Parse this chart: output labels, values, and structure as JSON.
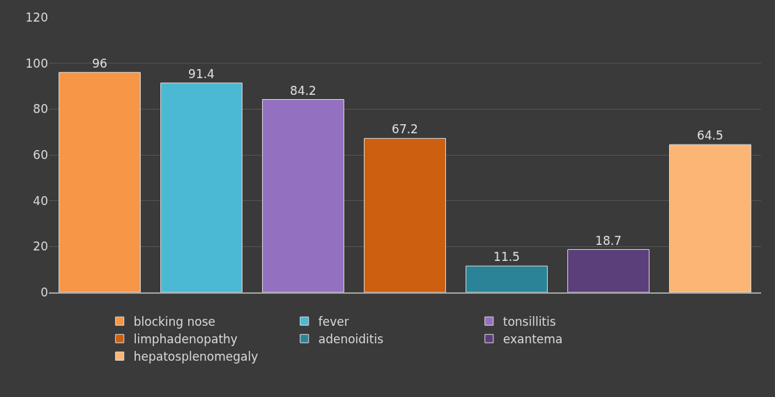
{
  "chart_data": {
    "type": "bar",
    "categories": [
      null,
      null,
      null,
      null,
      null,
      null,
      null
    ],
    "series": [
      {
        "name": "blocking nose",
        "color": "#f79646",
        "values": [
          96,
          null,
          null,
          null,
          null,
          null,
          null
        ]
      },
      {
        "name": "fever",
        "color": "#4bb8d4",
        "values": [
          null,
          91.4,
          null,
          null,
          null,
          null,
          null
        ]
      },
      {
        "name": "tonsillitis",
        "color": "#9470c0",
        "values": [
          null,
          null,
          84.2,
          null,
          null,
          null,
          null
        ]
      },
      {
        "name": "limphadenopathy",
        "color": "#cc5f10",
        "values": [
          null,
          null,
          null,
          67.2,
          null,
          null,
          null
        ]
      },
      {
        "name": "adenoiditis",
        "color": "#2b8398",
        "values": [
          null,
          null,
          null,
          null,
          11.5,
          null,
          null
        ]
      },
      {
        "name": "exantema",
        "color": "#5a3f7a",
        "values": [
          null,
          null,
          null,
          null,
          null,
          18.7,
          null
        ]
      },
      {
        "name": "hepatosplenomegaly",
        "color": "#fbb574",
        "values": [
          null,
          null,
          null,
          null,
          null,
          null,
          64.5
        ]
      }
    ],
    "ylim": [
      0,
      120
    ],
    "yticks": [
      0,
      20,
      40,
      60,
      80,
      100,
      120
    ],
    "grid": "y",
    "legend": "bottom",
    "data_labels": true
  }
}
